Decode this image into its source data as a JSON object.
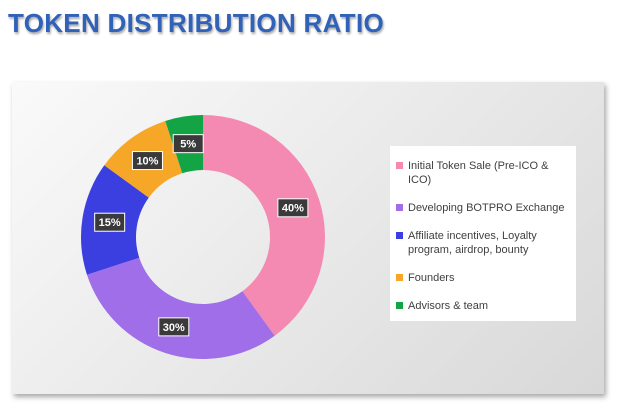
{
  "chart_data": {
    "type": "donut",
    "title": "TOKEN DISTRIBUTION RATIO",
    "categories": [
      "Initial Token Sale (Pre-ICO & ICO)",
      "Developing BOTPRO Exchange",
      "Affiliate incentives, Loyalty program, airdrop, bounty",
      "Founders",
      "Advisors & team"
    ],
    "values": [
      40,
      30,
      15,
      10,
      5
    ],
    "value_labels": [
      "40%",
      "30%",
      "15%",
      "10%",
      "5%"
    ],
    "colors": [
      "#f48ab2",
      "#a06ee8",
      "#3c3fe0",
      "#f7a727",
      "#12a445"
    ],
    "legend": "right"
  }
}
